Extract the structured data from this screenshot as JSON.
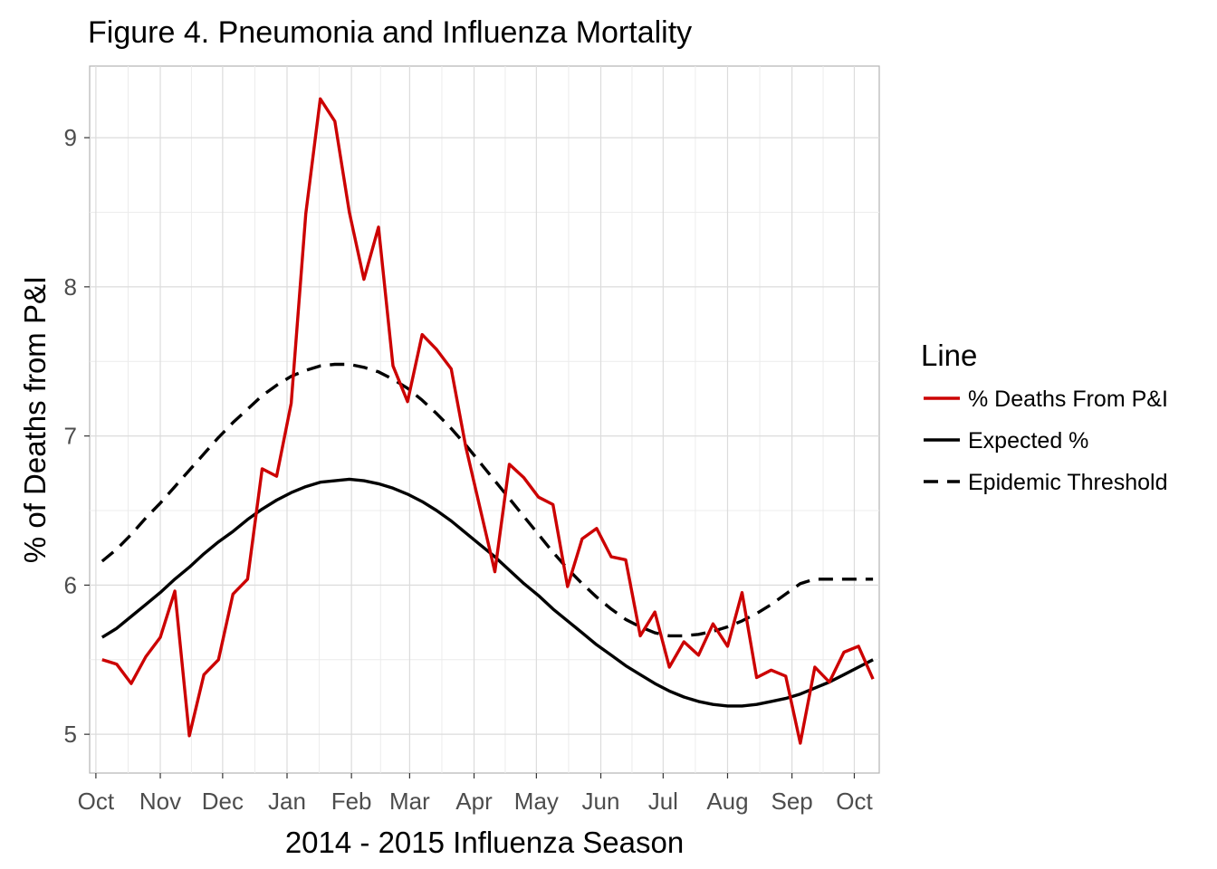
{
  "chart_data": {
    "type": "line",
    "title": "Figure 4. Pneumonia and Influenza Mortality",
    "xlabel": "2014 - 2015 Influenza Season",
    "ylabel": "% of Deaths from P&I",
    "x_axis": {
      "type": "date",
      "range": [
        "2014-09-28",
        "2015-10-13"
      ],
      "ticks": [
        {
          "date": "2014-10-01",
          "label": "Oct"
        },
        {
          "date": "2014-11-01",
          "label": "Nov"
        },
        {
          "date": "2014-12-01",
          "label": "Dec"
        },
        {
          "date": "2015-01-01",
          "label": "Jan"
        },
        {
          "date": "2015-02-01",
          "label": "Feb"
        },
        {
          "date": "2015-03-01",
          "label": "Mar"
        },
        {
          "date": "2015-04-01",
          "label": "Apr"
        },
        {
          "date": "2015-05-01",
          "label": "May"
        },
        {
          "date": "2015-06-01",
          "label": "Jun"
        },
        {
          "date": "2015-07-01",
          "label": "Jul"
        },
        {
          "date": "2015-08-01",
          "label": "Aug"
        },
        {
          "date": "2015-09-01",
          "label": "Sep"
        },
        {
          "date": "2015-10-01",
          "label": "Oct"
        }
      ]
    },
    "y_axis": {
      "range": [
        4.74,
        9.48
      ],
      "ticks": [
        5,
        6,
        7,
        8,
        9
      ]
    },
    "grid": true,
    "legend": {
      "title": "Line",
      "placement": "right"
    },
    "x": [
      "2014-10-04",
      "2014-10-11",
      "2014-10-18",
      "2014-10-25",
      "2014-11-01",
      "2014-11-08",
      "2014-11-15",
      "2014-11-22",
      "2014-11-29",
      "2014-12-06",
      "2014-12-13",
      "2014-12-20",
      "2014-12-27",
      "2015-01-03",
      "2015-01-10",
      "2015-01-17",
      "2015-01-24",
      "2015-01-31",
      "2015-02-07",
      "2015-02-14",
      "2015-02-21",
      "2015-02-28",
      "2015-03-07",
      "2015-03-14",
      "2015-03-21",
      "2015-03-28",
      "2015-04-04",
      "2015-04-11",
      "2015-04-18",
      "2015-04-25",
      "2015-05-02",
      "2015-05-09",
      "2015-05-16",
      "2015-05-23",
      "2015-05-30",
      "2015-06-06",
      "2015-06-13",
      "2015-06-20",
      "2015-06-27",
      "2015-07-04",
      "2015-07-11",
      "2015-07-18",
      "2015-07-25",
      "2015-08-01",
      "2015-08-08",
      "2015-08-15",
      "2015-08-22",
      "2015-08-29",
      "2015-09-05",
      "2015-09-12",
      "2015-09-19",
      "2015-09-26",
      "2015-10-03",
      "2015-10-10"
    ],
    "series": [
      {
        "name": "% Deaths From P&I",
        "color": "#cc0000",
        "style": "solid",
        "values": [
          5.5,
          5.47,
          5.34,
          5.52,
          5.65,
          5.96,
          4.99,
          5.4,
          5.5,
          5.94,
          6.04,
          6.78,
          6.73,
          7.22,
          8.49,
          9.26,
          9.11,
          8.5,
          8.05,
          8.4,
          7.47,
          7.23,
          7.68,
          7.58,
          7.45,
          6.93,
          6.51,
          6.09,
          6.81,
          6.72,
          6.59,
          6.54,
          5.99,
          6.31,
          6.38,
          6.19,
          6.17,
          5.66,
          5.82,
          5.45,
          5.62,
          5.53,
          5.74,
          5.59,
          5.95,
          5.38,
          5.43,
          5.39,
          4.94,
          5.45,
          5.35,
          5.55,
          5.59,
          5.37
        ]
      },
      {
        "name": "Expected %",
        "color": "#000000",
        "style": "solid",
        "values": [
          5.65,
          5.71,
          5.79,
          5.87,
          5.95,
          6.04,
          6.12,
          6.21,
          6.29,
          6.36,
          6.44,
          6.51,
          6.57,
          6.62,
          6.66,
          6.69,
          6.7,
          6.71,
          6.7,
          6.68,
          6.65,
          6.61,
          6.56,
          6.5,
          6.43,
          6.35,
          6.27,
          6.19,
          6.1,
          6.01,
          5.93,
          5.84,
          5.76,
          5.68,
          5.6,
          5.53,
          5.46,
          5.4,
          5.34,
          5.29,
          5.25,
          5.22,
          5.2,
          5.19,
          5.19,
          5.2,
          5.22,
          5.24,
          5.27,
          5.31,
          5.35,
          5.4,
          5.45,
          5.5
        ]
      },
      {
        "name": "Epidemic Threshold",
        "color": "#000000",
        "style": "dashed",
        "values": [
          6.16,
          6.24,
          6.34,
          6.45,
          6.55,
          6.66,
          6.77,
          6.88,
          6.99,
          7.09,
          7.18,
          7.27,
          7.34,
          7.4,
          7.44,
          7.47,
          7.48,
          7.48,
          7.46,
          7.43,
          7.38,
          7.32,
          7.24,
          7.15,
          7.05,
          6.94,
          6.82,
          6.7,
          6.58,
          6.46,
          6.34,
          6.22,
          6.11,
          6.01,
          5.92,
          5.84,
          5.77,
          5.72,
          5.68,
          5.66,
          5.66,
          5.67,
          5.69,
          5.72,
          5.76,
          5.81,
          5.87,
          5.94,
          6.01,
          6.04,
          6.04,
          6.04,
          6.04,
          6.04
        ]
      }
    ]
  }
}
